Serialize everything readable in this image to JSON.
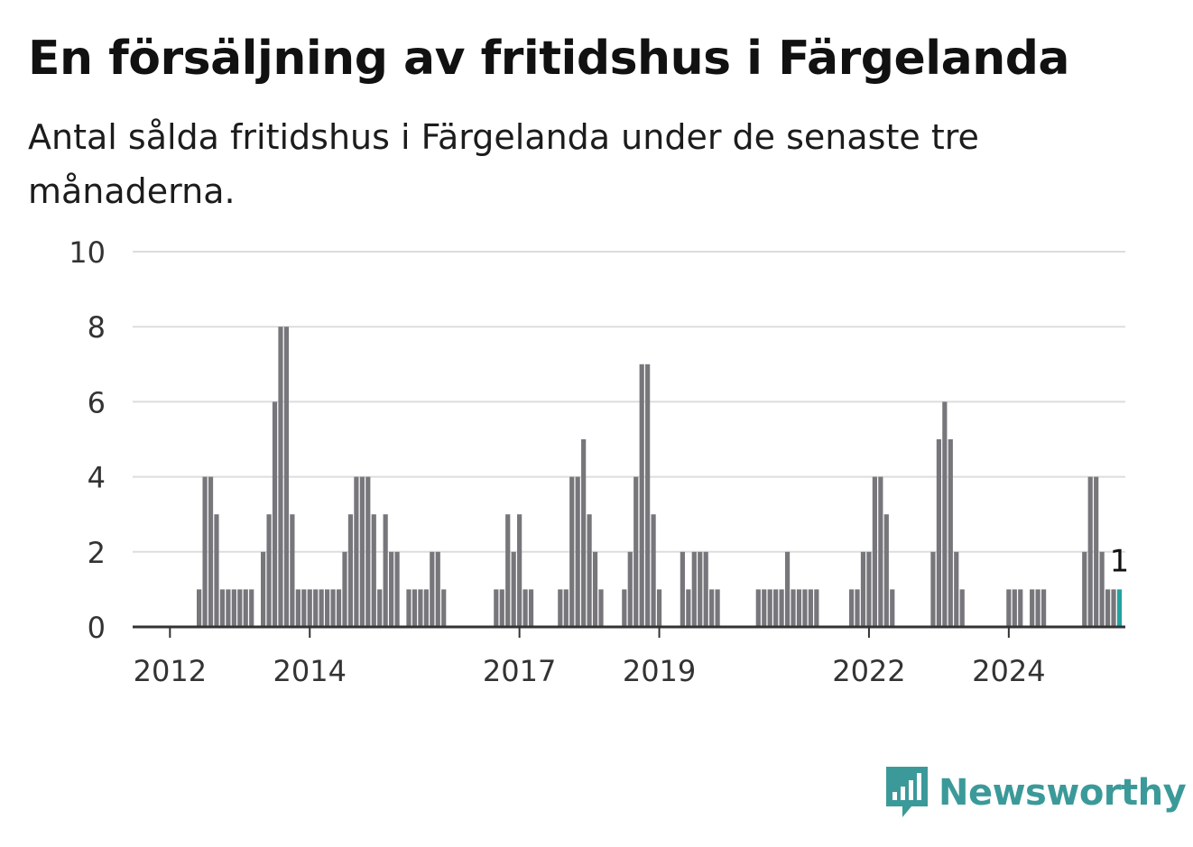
{
  "title": "En försäljning av fritidshus i Färgelanda",
  "subtitle": "Antal sålda fritidshus i Färgelanda under de senaste tre månaderna.",
  "brand": {
    "name": "Newsworthy",
    "logo_icon": "newsworthy-logo-icon",
    "color": "#3b9a99"
  },
  "chart_data": {
    "type": "bar",
    "title": "En försäljning av fritidshus i Färgelanda",
    "subtitle": "Antal sålda fritidshus i Färgelanda under de senaste tre månaderna.",
    "xlabel": "",
    "ylabel": "",
    "ylim": [
      0,
      10
    ],
    "yticks": [
      "0",
      "2",
      "4",
      "6",
      "8",
      "10"
    ],
    "xticks": [
      {
        "label": "2012",
        "year": 2012
      },
      {
        "label": "2014",
        "year": 2014
      },
      {
        "label": "2017",
        "year": 2017
      },
      {
        "label": "2019",
        "year": 2019
      },
      {
        "label": "2022",
        "year": 2022
      },
      {
        "label": "2024",
        "year": 2024
      }
    ],
    "grid": true,
    "bar_color": "#77767b",
    "highlight_color": "#23a3a0",
    "highlight_label": "1",
    "series": [
      {
        "start": "2011-07",
        "values": [
          0,
          0,
          0,
          0,
          0,
          0,
          0,
          0,
          0,
          0,
          0,
          1,
          4,
          4,
          3,
          1,
          1,
          1,
          1,
          1,
          1,
          0,
          2,
          3,
          6,
          8,
          8,
          3,
          1,
          1,
          1,
          1,
          1,
          1,
          1,
          1,
          2,
          3,
          4,
          4,
          4,
          3,
          1,
          3,
          2,
          2,
          0,
          1,
          1,
          1,
          1,
          2,
          2,
          1,
          0,
          0,
          0,
          0,
          0,
          0,
          0,
          0,
          1,
          1,
          3,
          2,
          3,
          1,
          1,
          0,
          0,
          0,
          0,
          1,
          1,
          4,
          4,
          5,
          3,
          2,
          1,
          0,
          0,
          0,
          1,
          2,
          4,
          7,
          7,
          3,
          1,
          0,
          0,
          0,
          2,
          1,
          2,
          2,
          2,
          1,
          1,
          0,
          0,
          0,
          0,
          0,
          0,
          1,
          1,
          1,
          1,
          1,
          2,
          1,
          1,
          1,
          1,
          1,
          0,
          0,
          0,
          0,
          0,
          1,
          1,
          2,
          2,
          4,
          4,
          3,
          1,
          0,
          0,
          0,
          0,
          0,
          0,
          2,
          5,
          6,
          5,
          2,
          1,
          0,
          0,
          0,
          0,
          0,
          0,
          0,
          1,
          1,
          1,
          0,
          1,
          1,
          1,
          0,
          0,
          0,
          0,
          0,
          0,
          2,
          4,
          4,
          2,
          1,
          1,
          1
        ]
      }
    ]
  }
}
